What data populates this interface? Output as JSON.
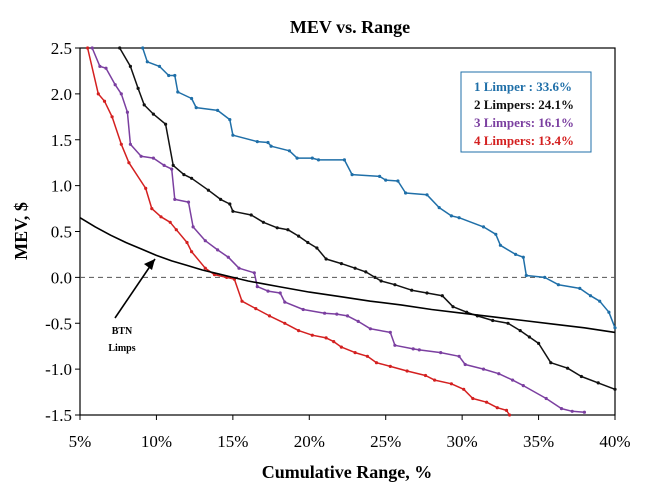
{
  "chart_data": {
    "type": "line",
    "title": "MEV vs. Range",
    "xlabel": "Cumulative Range, %",
    "ylabel": "MEV, $",
    "xlim": [
      5,
      40
    ],
    "ylim": [
      -1.5,
      2.5
    ],
    "x_ticks": [
      5,
      10,
      15,
      20,
      25,
      30,
      35,
      40
    ],
    "x_tick_labels": [
      "5%",
      "10%",
      "15%",
      "20%",
      "25%",
      "30%",
      "35%",
      "40%"
    ],
    "y_ticks": [
      -1.5,
      -1.0,
      -0.5,
      0.0,
      0.5,
      1.0,
      1.5,
      2.0,
      2.5
    ],
    "y_tick_labels": [
      "-1.5",
      "-1.0",
      "-0.5",
      "0.0",
      "0.5",
      "1.0",
      "1.5",
      "2.0",
      "2.5"
    ],
    "grid": false,
    "reference_line": {
      "y": 0.0,
      "style": "dashed"
    },
    "legend_position": "top-right",
    "series": [
      {
        "name": "1 Limper : 33.6%",
        "color": "#1f6fa8",
        "x": [
          9.1,
          9.4,
          10.2,
          10.8,
          11.2,
          11.4,
          12.3,
          12.6,
          14.0,
          14.8,
          15.0,
          16.6,
          17.3,
          17.5,
          18.7,
          19.2,
          20.2,
          20.6,
          22.3,
          22.8,
          24.6,
          25.0,
          25.8,
          26.3,
          27.7,
          28.5,
          29.3,
          29.8,
          31.4,
          32.2,
          32.5,
          33.5,
          34.0,
          34.2,
          35.4,
          36.3,
          37.7,
          38.4,
          39.0,
          39.6,
          40.0
        ],
        "y": [
          2.5,
          2.35,
          2.3,
          2.2,
          2.2,
          2.02,
          1.95,
          1.85,
          1.82,
          1.72,
          1.55,
          1.48,
          1.47,
          1.43,
          1.38,
          1.3,
          1.3,
          1.28,
          1.28,
          1.12,
          1.1,
          1.06,
          1.05,
          0.92,
          0.9,
          0.76,
          0.67,
          0.65,
          0.55,
          0.47,
          0.35,
          0.25,
          0.22,
          0.02,
          0.0,
          -0.08,
          -0.12,
          -0.2,
          -0.26,
          -0.38,
          -0.55
        ]
      },
      {
        "name": "2 Limpers: 24.1%",
        "color": "#111111",
        "x": [
          7.6,
          8.3,
          8.8,
          9.2,
          9.8,
          10.6,
          11.1,
          11.8,
          12.3,
          13.4,
          14.2,
          14.8,
          15.0,
          16.2,
          17.0,
          17.9,
          18.6,
          19.3,
          19.9,
          20.5,
          21.1,
          22.1,
          23.0,
          23.7,
          24.3,
          24.7,
          25.6,
          26.7,
          27.7,
          28.7,
          29.4,
          30.3,
          31.0,
          32.0,
          33.0,
          33.8,
          34.4,
          35.0,
          35.8,
          36.9,
          37.8,
          38.9,
          40.0
        ],
        "y": [
          2.5,
          2.3,
          2.06,
          1.88,
          1.78,
          1.67,
          1.22,
          1.12,
          1.08,
          0.95,
          0.85,
          0.8,
          0.72,
          0.68,
          0.6,
          0.54,
          0.52,
          0.45,
          0.38,
          0.32,
          0.2,
          0.15,
          0.1,
          0.06,
          0.0,
          -0.04,
          -0.08,
          -0.14,
          -0.17,
          -0.2,
          -0.32,
          -0.38,
          -0.42,
          -0.47,
          -0.5,
          -0.58,
          -0.65,
          -0.72,
          -0.93,
          -0.99,
          -1.08,
          -1.15,
          -1.22
        ]
      },
      {
        "name": "3 Limpers: 16.1%",
        "color": "#7b3fa0",
        "x": [
          5.8,
          6.3,
          6.7,
          7.3,
          7.7,
          8.1,
          8.3,
          9.0,
          9.8,
          10.5,
          11.0,
          11.2,
          12.1,
          12.4,
          13.2,
          14.0,
          14.7,
          15.4,
          16.4,
          16.6,
          17.3,
          18.1,
          18.4,
          19.6,
          21.0,
          21.8,
          22.5,
          23.2,
          24.0,
          25.3,
          25.6,
          26.8,
          27.2,
          28.6,
          29.8,
          30.2,
          31.4,
          32.4,
          33.3,
          34.0,
          35.5,
          36.5,
          37.2,
          38.0
        ],
        "y": [
          2.5,
          2.3,
          2.28,
          2.1,
          2.0,
          1.8,
          1.45,
          1.32,
          1.3,
          1.22,
          1.18,
          0.85,
          0.82,
          0.55,
          0.4,
          0.3,
          0.22,
          0.1,
          0.05,
          -0.1,
          -0.15,
          -0.17,
          -0.27,
          -0.35,
          -0.39,
          -0.4,
          -0.42,
          -0.48,
          -0.56,
          -0.6,
          -0.74,
          -0.78,
          -0.79,
          -0.82,
          -0.86,
          -0.95,
          -1.0,
          -1.05,
          -1.12,
          -1.18,
          -1.32,
          -1.43,
          -1.46,
          -1.47
        ]
      },
      {
        "name": "4 Limpers: 13.4%",
        "color": "#d42020",
        "x": [
          5.5,
          6.2,
          6.6,
          7.1,
          7.7,
          8.2,
          9.3,
          9.7,
          10.3,
          10.9,
          11.3,
          12.0,
          12.3,
          13.2,
          13.8,
          14.6,
          15.1,
          15.6,
          16.5,
          17.4,
          18.4,
          19.3,
          20.2,
          21.1,
          21.6,
          22.1,
          23.0,
          23.8,
          24.4,
          25.3,
          26.4,
          27.6,
          28.2,
          29.3,
          30.1,
          30.7,
          31.6,
          32.3,
          32.9,
          33.1
        ],
        "y": [
          2.5,
          2.0,
          1.92,
          1.75,
          1.45,
          1.25,
          0.97,
          0.75,
          0.66,
          0.6,
          0.52,
          0.38,
          0.28,
          0.1,
          0.03,
          0.0,
          -0.02,
          -0.26,
          -0.34,
          -0.42,
          -0.5,
          -0.58,
          -0.63,
          -0.66,
          -0.7,
          -0.76,
          -0.82,
          -0.86,
          -0.93,
          -0.97,
          -1.02,
          -1.07,
          -1.12,
          -1.16,
          -1.22,
          -1.32,
          -1.36,
          -1.42,
          -1.45,
          -1.5
        ]
      },
      {
        "name": "BTN Limps",
        "color": "#000000",
        "x": [
          5,
          6,
          7,
          8,
          9,
          10,
          11,
          12,
          13,
          14,
          15,
          16,
          17,
          18,
          20,
          22,
          24,
          26,
          28,
          30,
          32,
          34,
          36,
          38,
          40
        ],
        "y": [
          0.65,
          0.55,
          0.46,
          0.38,
          0.31,
          0.24,
          0.18,
          0.13,
          0.08,
          0.04,
          0.0,
          -0.04,
          -0.07,
          -0.1,
          -0.16,
          -0.21,
          -0.26,
          -0.3,
          -0.35,
          -0.39,
          -0.43,
          -0.47,
          -0.51,
          -0.55,
          -0.6
        ]
      }
    ],
    "annotations": [
      {
        "text_lines": [
          "BTN",
          "Limps"
        ],
        "points_to_series": "BTN Limps",
        "arrow_target": [
          10.0,
          0.2
        ]
      }
    ]
  }
}
